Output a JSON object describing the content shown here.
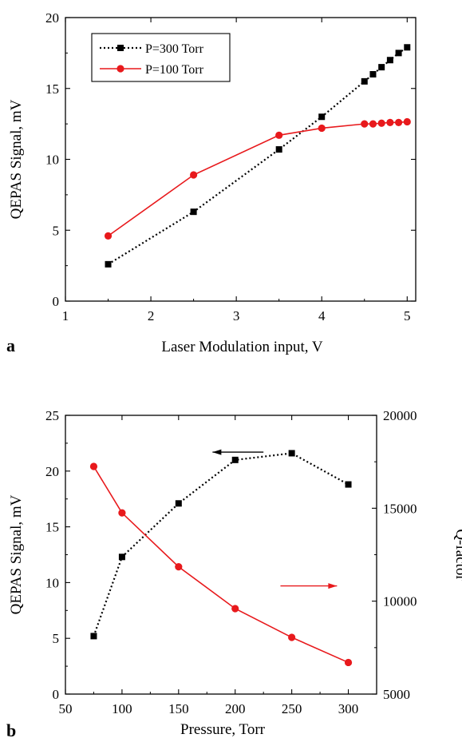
{
  "chart_data": [
    {
      "type": "line",
      "panel_label": "a",
      "xlabel": "Laser Modulation input, V",
      "ylabel": "QEPAS Signal, mV",
      "xlim": [
        1,
        5.1
      ],
      "ylim": [
        0,
        20
      ],
      "xticks": [
        1,
        2,
        3,
        4,
        5
      ],
      "yticks": [
        0,
        5,
        10,
        15,
        20
      ],
      "legend_position": "top-left",
      "series": [
        {
          "name": "P=300 Torr",
          "color": "#000000",
          "line_style": "dotted",
          "marker": "square",
          "x": [
            1.5,
            2.5,
            3.5,
            4.0,
            4.5,
            4.6,
            4.7,
            4.8,
            4.9,
            5.0
          ],
          "y": [
            2.6,
            6.3,
            10.7,
            13.0,
            15.5,
            16.0,
            16.5,
            17.0,
            17.5,
            17.9
          ]
        },
        {
          "name": "P=100 Torr",
          "color": "#e8191c",
          "line_style": "solid",
          "marker": "circle",
          "x": [
            1.5,
            2.5,
            3.5,
            4.0,
            4.5,
            4.6,
            4.7,
            4.8,
            4.9,
            5.0
          ],
          "y": [
            4.6,
            8.9,
            11.7,
            12.2,
            12.5,
            12.5,
            12.55,
            12.6,
            12.6,
            12.65
          ]
        }
      ]
    },
    {
      "type": "line",
      "panel_label": "b",
      "xlabel": "Pressure, Torr",
      "ylabel": "QEPAS Signal, mV",
      "y2label": "Q-factor",
      "xlim": [
        50,
        325
      ],
      "ylim": [
        0,
        25
      ],
      "y2lim": [
        5000,
        20000
      ],
      "xticks": [
        50,
        100,
        150,
        200,
        250,
        300
      ],
      "yticks": [
        0,
        5,
        10,
        15,
        20,
        25
      ],
      "y2ticks": [
        5000,
        10000,
        15000,
        20000
      ],
      "series": [
        {
          "axis": "left",
          "color": "#000000",
          "line_style": "dotted",
          "marker": "square",
          "x": [
            75,
            100,
            150,
            200,
            250,
            300
          ],
          "y": [
            5.2,
            12.3,
            17.1,
            21.0,
            21.6,
            18.8
          ]
        },
        {
          "axis": "right",
          "color": "#e8191c",
          "line_style": "solid",
          "marker": "circle",
          "x": [
            75,
            100,
            150,
            200,
            250,
            300
          ],
          "y": [
            17250,
            14750,
            11850,
            9600,
            8050,
            6700
          ]
        }
      ],
      "arrows": [
        {
          "points_to": "left",
          "color": "#000000",
          "value": 21.7
        },
        {
          "points_to": "right",
          "color": "#e8191c",
          "value": 9.7
        }
      ]
    }
  ]
}
